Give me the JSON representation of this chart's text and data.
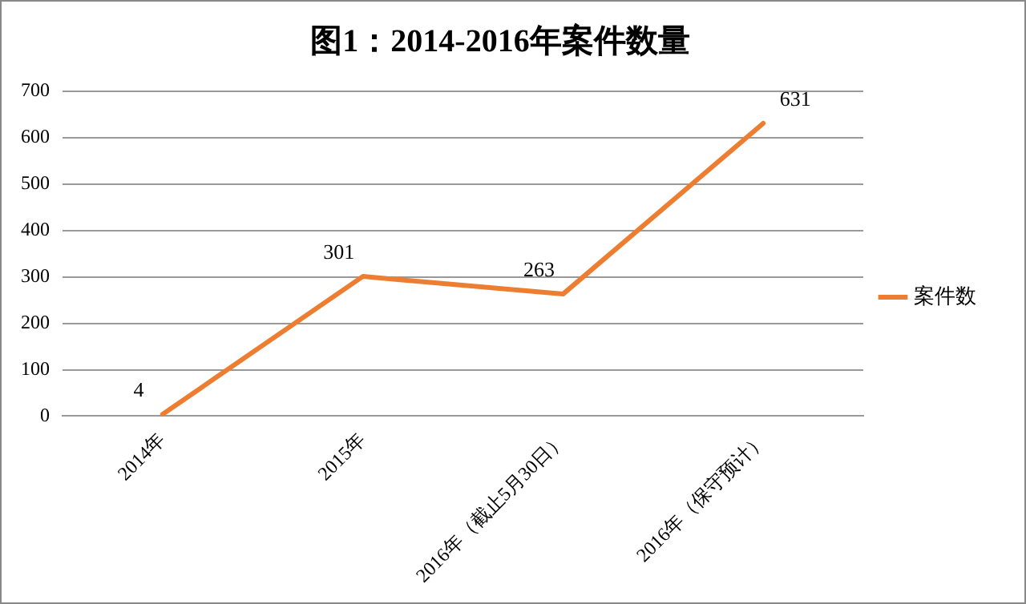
{
  "chart_data": {
    "type": "line",
    "title": "图1：2014-2016年案件数量",
    "categories": [
      "2014年",
      "2015年",
      "2016年（截止5月30日）",
      "2016年（保守预计）"
    ],
    "series": [
      {
        "name": "案件数",
        "color": "#ed7d31",
        "values": [
          4,
          301,
          263,
          631
        ]
      }
    ],
    "ylim": [
      0,
      700
    ],
    "yticks": [
      0,
      100,
      200,
      300,
      400,
      500,
      600,
      700
    ],
    "grid": "y",
    "legend": "right",
    "marker": "none",
    "line_style": "solid",
    "data_labels": true
  }
}
